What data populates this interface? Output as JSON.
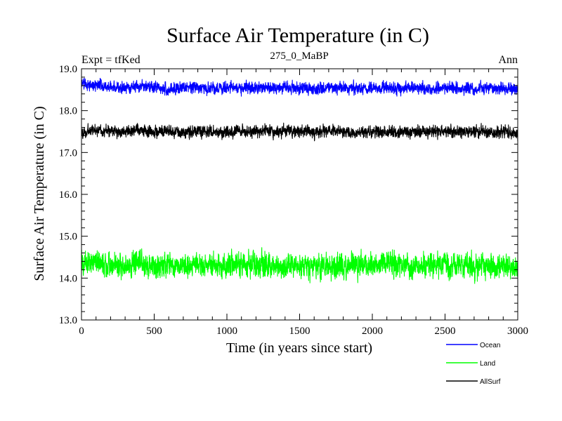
{
  "chart_data": {
    "type": "line",
    "title": "Surface Air Temperature (in C)",
    "subtitle": "275_0_MaBP",
    "left_label": "Expt = tfKed",
    "right_label": "Ann",
    "xlabel": "Time (in years since start)",
    "ylabel": "Surface Air Temperature (in C)",
    "xlim": [
      0,
      3000
    ],
    "ylim": [
      13.0,
      19.0
    ],
    "x_ticks": [
      0,
      500,
      1000,
      1500,
      2000,
      2500,
      3000
    ],
    "x_tick_labels": [
      "0",
      "500",
      "1000",
      "1500",
      "2000",
      "2500",
      "3000"
    ],
    "y_ticks": [
      13.0,
      14.0,
      15.0,
      16.0,
      17.0,
      18.0,
      19.0
    ],
    "y_tick_labels": [
      "13.0",
      "14.0",
      "15.0",
      "16.0",
      "17.0",
      "18.0",
      "19.0"
    ],
    "grid": false,
    "legend_position": "bottom-right",
    "series": [
      {
        "name": "Ocean",
        "color": "#0000ff",
        "mean": 18.55,
        "spread": 0.12,
        "x": [
          0,
          100,
          200,
          300,
          400,
          500,
          600,
          700,
          800,
          900,
          1000,
          1100,
          1200,
          1300,
          1400,
          1500,
          1600,
          1700,
          1800,
          1900,
          2000,
          2100,
          2200,
          2300,
          2400,
          2500,
          2600,
          2700,
          2800,
          2900,
          3000
        ],
        "values": [
          18.65,
          18.6,
          18.55,
          18.55,
          18.58,
          18.55,
          18.52,
          18.55,
          18.55,
          18.53,
          18.55,
          18.54,
          18.55,
          18.56,
          18.55,
          18.55,
          18.52,
          18.54,
          18.55,
          18.53,
          18.55,
          18.54,
          18.53,
          18.55,
          18.52,
          18.55,
          18.53,
          18.52,
          18.54,
          18.53,
          18.52
        ]
      },
      {
        "name": "Land",
        "color": "#00ff00",
        "mean": 14.3,
        "spread": 0.25,
        "x": [
          0,
          100,
          200,
          300,
          400,
          500,
          600,
          700,
          800,
          900,
          1000,
          1100,
          1200,
          1300,
          1400,
          1500,
          1600,
          1700,
          1800,
          1900,
          2000,
          2100,
          2200,
          2300,
          2400,
          2500,
          2600,
          2700,
          2800,
          2900,
          3000
        ],
        "values": [
          14.35,
          14.4,
          14.3,
          14.3,
          14.35,
          14.3,
          14.3,
          14.28,
          14.3,
          14.32,
          14.3,
          14.3,
          14.32,
          14.28,
          14.3,
          14.3,
          14.3,
          14.28,
          14.3,
          14.3,
          14.3,
          14.32,
          14.3,
          14.28,
          14.3,
          14.32,
          14.3,
          14.3,
          14.28,
          14.3,
          14.25
        ]
      },
      {
        "name": "AllSurf",
        "color": "#000000",
        "mean": 17.5,
        "spread": 0.12,
        "x": [
          0,
          100,
          200,
          300,
          400,
          500,
          600,
          700,
          800,
          900,
          1000,
          1100,
          1200,
          1300,
          1400,
          1500,
          1600,
          1700,
          1800,
          1900,
          2000,
          2100,
          2200,
          2300,
          2400,
          2500,
          2600,
          2700,
          2800,
          2900,
          3000
        ],
        "values": [
          17.45,
          17.55,
          17.5,
          17.5,
          17.52,
          17.5,
          17.48,
          17.5,
          17.5,
          17.48,
          17.5,
          17.5,
          17.5,
          17.52,
          17.5,
          17.5,
          17.48,
          17.5,
          17.5,
          17.48,
          17.5,
          17.5,
          17.48,
          17.5,
          17.48,
          17.5,
          17.48,
          17.5,
          17.48,
          17.48,
          17.45
        ]
      }
    ]
  }
}
